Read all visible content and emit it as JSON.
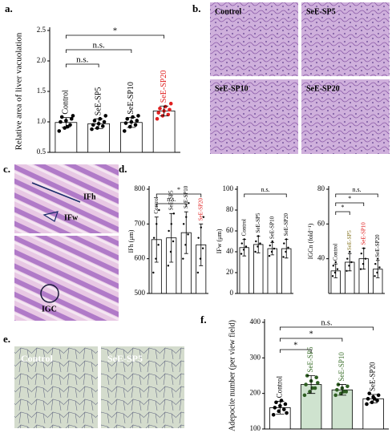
{
  "panel_labels": [
    "a.",
    "b.",
    "c.",
    "d.",
    "e.",
    "f."
  ],
  "images": {
    "b": {
      "labels": [
        "Control",
        "SeE-SP5",
        "SeE-SP10",
        "SeE-SP20"
      ]
    },
    "c": {
      "labels": [
        "IFh",
        "IFw",
        "IGC"
      ]
    },
    "e": {
      "labels": [
        "Control",
        "SeE-SP5"
      ]
    }
  },
  "chart_data": [
    {
      "type": "bar",
      "ylabel": "Relative area of liver vacuolation",
      "categories": [
        "Control",
        "SeE-SP5",
        "SeE-SP10",
        "SeE-SP20"
      ],
      "values": [
        0.99,
        0.97,
        0.99,
        1.18
      ],
      "errors": [
        0.08,
        0.08,
        0.08,
        0.08
      ],
      "points": [
        [
          0.85,
          0.9,
          0.95,
          1.0,
          1.02,
          1.05,
          1.08,
          0.92,
          1.1
        ],
        [
          0.88,
          0.9,
          0.93,
          0.95,
          0.97,
          1.0,
          1.02,
          1.05,
          1.1
        ],
        [
          0.85,
          0.92,
          0.95,
          0.98,
          1.0,
          1.02,
          1.05,
          1.08,
          1.1
        ],
        [
          1.05,
          1.1,
          1.12,
          1.15,
          1.18,
          1.2,
          1.22,
          1.25,
          1.3
        ]
      ],
      "colors": [
        "#ffffff",
        "#ffffff",
        "#ffffff",
        "#ffffff"
      ],
      "label_colors": [
        "#000000",
        "#000000",
        "#000000",
        "#e02020"
      ],
      "point_colors": [
        "#000000",
        "#000000",
        "#000000",
        "#e02020"
      ],
      "ylim": [
        0.5,
        2.5
      ],
      "yticks": [
        0.5,
        {
          "value": 1.0,
          "label": "1.0"
        },
        1.5,
        {
          "value": 2.0,
          "label": "2.0"
        },
        2.5
      ],
      "significance": [
        {
          "between": [
            "Control",
            "SeE-SP5"
          ],
          "label": "n.s."
        },
        {
          "between": [
            "Control",
            "SeE-SP10"
          ],
          "label": "n.s."
        },
        {
          "between": [
            "Control",
            "SeE-SP20"
          ],
          "label": "*"
        }
      ]
    },
    {
      "type": "bar",
      "ylabel": "IFh (μm)",
      "categories": [
        "Control",
        "SeE-SP5",
        "SeE-SP10",
        "SeE-SP20"
      ],
      "values": [
        655,
        660,
        675,
        640
      ],
      "errors": [
        65,
        70,
        60,
        60
      ],
      "points": [
        [
          560,
          600,
          640,
          660,
          700,
          740
        ],
        [
          580,
          620,
          650,
          680,
          700,
          730
        ],
        [
          600,
          640,
          670,
          700,
          720,
          760
        ],
        [
          560,
          600,
          630,
          660,
          690,
          720
        ]
      ],
      "colors": [
        "#ffffff",
        "#ffffff",
        "#ffffff",
        "#ffffff"
      ],
      "label_colors": [
        "#000000",
        "#000000",
        "#000000",
        "#e02020"
      ],
      "point_colors": [
        "#000000",
        "#000000",
        "#000000",
        "#000000"
      ],
      "ylim": [
        500,
        800
      ],
      "yticks": [
        500,
        600,
        700,
        800
      ],
      "significance": [
        {
          "between": [
            "Control",
            "SeE-SP10"
          ],
          "label": "n.s."
        },
        {
          "between": [
            "Control",
            "SeE-SP20"
          ],
          "label": "*"
        }
      ]
    },
    {
      "type": "bar",
      "ylabel": "IFw (μm)",
      "categories": [
        "Control",
        "SeE-SP5",
        "SeE-SP10",
        "SeE-SP20"
      ],
      "values": [
        44,
        47,
        43,
        43
      ],
      "errors": [
        8,
        8,
        6,
        9
      ],
      "points": [
        [
          38,
          42,
          45,
          48,
          52
        ],
        [
          40,
          45,
          48,
          50,
          55
        ],
        [
          36,
          40,
          43,
          46,
          50
        ],
        [
          35,
          40,
          44,
          48,
          52
        ]
      ],
      "colors": [
        "#ffffff",
        "#ffffff",
        "#ffffff",
        "#ffffff"
      ],
      "label_colors": [
        "#000000",
        "#000000",
        "#000000",
        "#000000"
      ],
      "point_colors": [
        "#000000",
        "#000000",
        "#000000",
        "#000000"
      ],
      "ylim": [
        0,
        100
      ],
      "yticks": [
        0,
        20,
        40,
        60,
        80,
        100
      ],
      "significance": [
        {
          "between": [
            "Control",
            "SeE-SP20"
          ],
          "label": "n.s."
        }
      ]
    },
    {
      "type": "bar",
      "ylabel": "IGCn (fold⁻¹)",
      "categories": [
        "Control",
        "SeE-SP5",
        "SeE-SP10",
        "SeE-SP20"
      ],
      "values": [
        33,
        38,
        40,
        34
      ],
      "errors": [
        4,
        5,
        6,
        5
      ],
      "points": [
        [
          30,
          32,
          34,
          36,
          38
        ],
        [
          33,
          36,
          38,
          40,
          44
        ],
        [
          34,
          37,
          40,
          43,
          46
        ],
        [
          30,
          32,
          35,
          37,
          40
        ]
      ],
      "colors": [
        "#ffffff",
        "#ffffff",
        "#ffffff",
        "#ffffff"
      ],
      "label_colors": [
        "#000000",
        "#8a7a2a",
        "#e02020",
        "#000000"
      ],
      "point_colors": [
        "#000000",
        "#000000",
        "#000000",
        "#000000"
      ],
      "ylim": [
        20,
        80
      ],
      "yticks": [
        40,
        60,
        80
      ],
      "significance": [
        {
          "between": [
            "Control",
            "SeE-SP5"
          ],
          "label": "*"
        },
        {
          "between": [
            "Control",
            "SeE-SP10"
          ],
          "label": "*"
        },
        {
          "between": [
            "Control",
            "SeE-SP20"
          ],
          "label": "n.s."
        }
      ]
    },
    {
      "type": "bar",
      "ylabel": "Adepocite number (per view field)",
      "categories": [
        "Control",
        "SeE-SP5",
        "SeE-SP10",
        "SeE-SP20"
      ],
      "values": [
        160,
        225,
        210,
        185
      ],
      "errors": [
        18,
        25,
        15,
        12
      ],
      "points": [
        [
          140,
          150,
          155,
          160,
          165,
          170,
          175,
          180,
          145
        ],
        [
          195,
          205,
          215,
          225,
          235,
          245,
          250,
          215,
          230
        ],
        [
          195,
          200,
          205,
          210,
          215,
          220,
          225,
          205
        ],
        [
          170,
          175,
          180,
          185,
          190,
          195,
          200,
          185
        ]
      ],
      "colors": [
        "#ffffff",
        "#cfe3cf",
        "#cfe3cf",
        "#ffffff"
      ],
      "label_colors": [
        "#000000",
        "#3a6e2a",
        "#3a6e2a",
        "#000000"
      ],
      "point_colors": [
        "#000000",
        "#2e5e22",
        "#2e5e22",
        "#000000"
      ],
      "ylim": [
        100,
        400
      ],
      "yticks": [
        100,
        200,
        300,
        400
      ],
      "significance": [
        {
          "between": [
            "Control",
            "SeE-SP5"
          ],
          "label": "*"
        },
        {
          "between": [
            "Control",
            "SeE-SP10"
          ],
          "label": "*"
        },
        {
          "between": [
            "Control",
            "SeE-SP20"
          ],
          "label": "n.s."
        }
      ]
    }
  ]
}
